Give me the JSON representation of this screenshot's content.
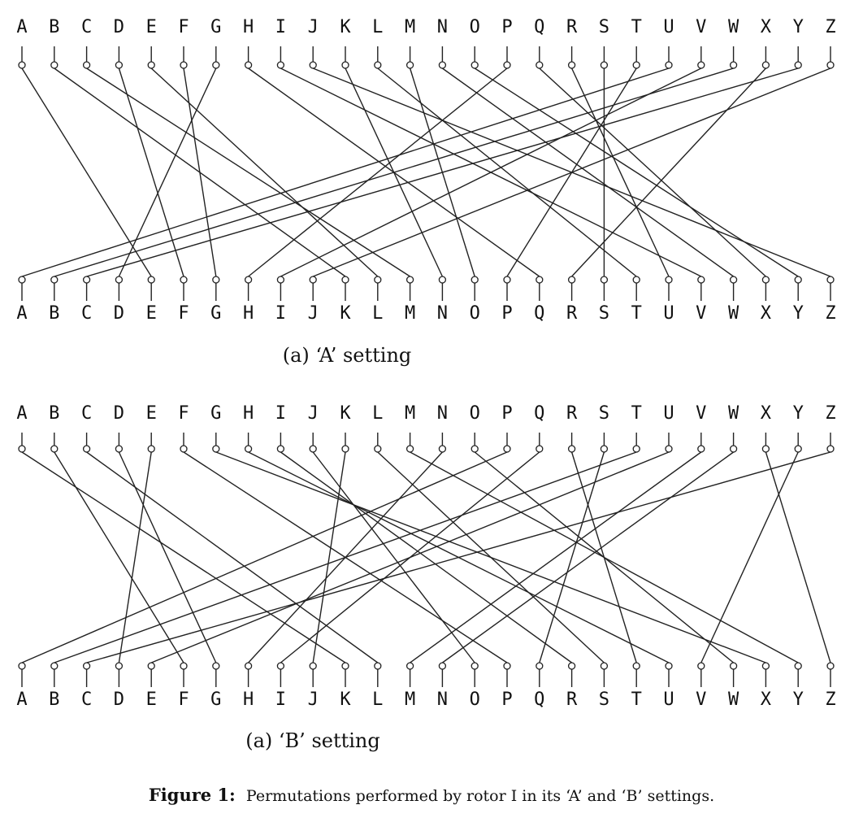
{
  "letters": [
    "A",
    "B",
    "C",
    "D",
    "E",
    "F",
    "G",
    "H",
    "I",
    "J",
    "K",
    "L",
    "M",
    "N",
    "O",
    "P",
    "Q",
    "R",
    "S",
    "T",
    "U",
    "V",
    "W",
    "X",
    "Y",
    "Z"
  ],
  "panels": [
    {
      "id": "A",
      "caption": "(a) ‘A’ setting",
      "mapping": "EKMFLGDQVZNTOWYHXUSPAIBRCJ"
    },
    {
      "id": "B",
      "caption": "(a) ‘B’ setting",
      "mapping": "KFLGDPXUROJSYHWAITQBEMNZVC"
    }
  ],
  "figure": {
    "label": "Figure 1:",
    "text": "Permutations performed by rotor I in its ‘A’ and ‘B’ settings."
  }
}
